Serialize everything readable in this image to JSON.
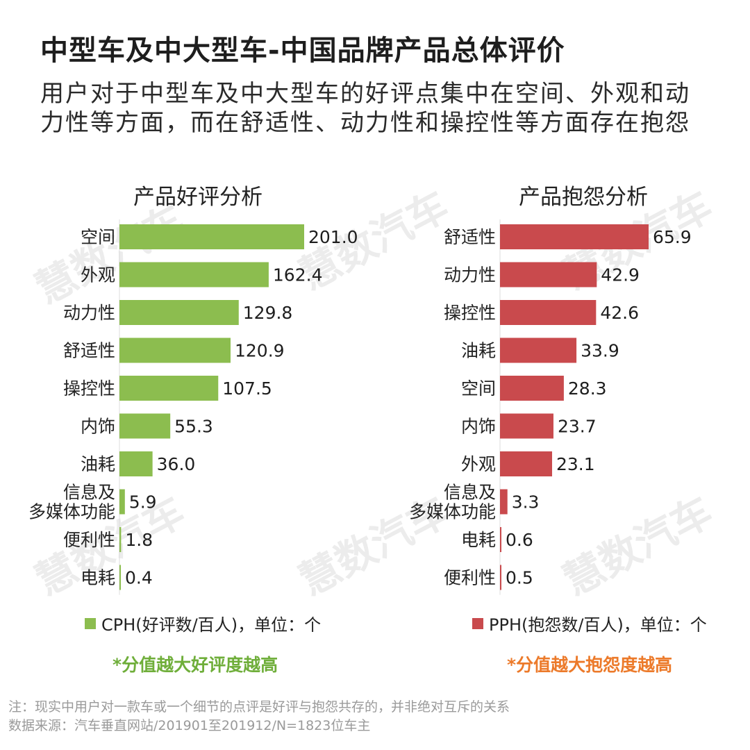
{
  "title": "中型车及中大型车-中国品牌产品总体评价",
  "subtitle": "用户对于中型车及中大型车的好评点集中在空间、外观和动力性等方面，而在舒适性、动力性和操控性等方面存在抱怨",
  "watermark": "慧数汽车",
  "colors": {
    "positive": "#8cbd4f",
    "negative": "#c94a4d",
    "positive_note": "#6fae3a",
    "negative_note": "#ec7a2a"
  },
  "chart_data": [
    {
      "type": "bar",
      "orientation": "horizontal",
      "title": "产品好评分析",
      "categories": [
        "空间",
        "外观",
        "动力性",
        "舒适性",
        "操控性",
        "内饰",
        "油耗",
        "信息及\n多媒体功能",
        "便利性",
        "电耗"
      ],
      "values": [
        201.0,
        162.4,
        129.8,
        120.9,
        107.5,
        55.3,
        36.0,
        5.9,
        1.8,
        0.4
      ],
      "labels": [
        "201.0",
        "162.4",
        "129.8",
        "120.9",
        "107.5",
        "55.3",
        "36.0",
        "5.9",
        "1.8",
        "0.4"
      ],
      "series_name": "CPH(好评数/百人)，单位：个",
      "xlim": [
        0,
        201.0
      ]
    },
    {
      "type": "bar",
      "orientation": "horizontal",
      "title": "产品抱怨分析",
      "categories": [
        "舒适性",
        "动力性",
        "操控性",
        "油耗",
        "空间",
        "内饰",
        "外观",
        "信息及\n多媒体功能",
        "电耗",
        "便利性"
      ],
      "values": [
        65.9,
        42.9,
        42.6,
        33.9,
        28.3,
        23.7,
        23.1,
        3.3,
        0.6,
        0.5
      ],
      "labels": [
        "65.9",
        "42.9",
        "42.6",
        "33.9",
        "28.3",
        "23.7",
        "23.1",
        "3.3",
        "0.6",
        "0.5"
      ],
      "series_name": "PPH(抱怨数/百人)，单位：个",
      "xlim": [
        0,
        65.9
      ]
    }
  ],
  "notes": {
    "positive": "*分值越大好评度越高",
    "negative": "*分值越大抱怨度越高"
  },
  "footnotes": {
    "line1": "注：现实中用户对一款车或一个细节的点评是好评与抱怨共存的，并非绝对互斥的关系",
    "line2": "数据来源：汽车垂直网站/201901至201912/N=1823位车主"
  }
}
